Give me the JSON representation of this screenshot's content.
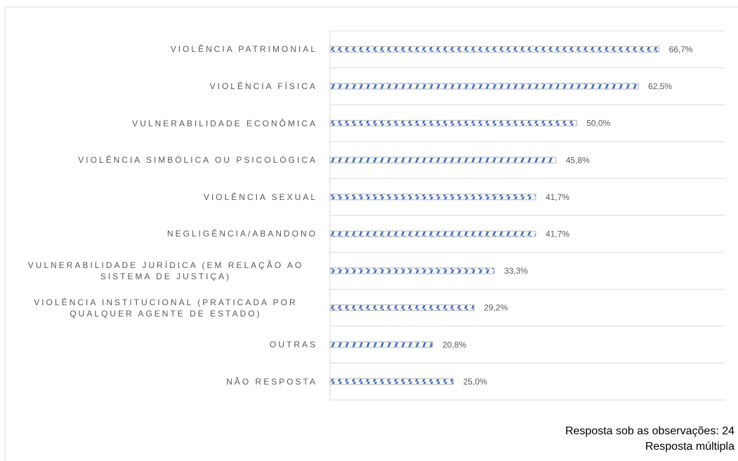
{
  "chart_data": {
    "type": "bar",
    "orientation": "horizontal",
    "categories": [
      "VIOLÊNCIA PATRIMONIAL",
      "VIOLÊNCIA FÍSICA",
      "VULNERABILIDADE ECONÔMICA",
      "VIOLÊNCIA SIMBÓLICA OU PSICOLÓGICA",
      "VIOLÊNCIA SEXUAL",
      "NEGLIGÊNCIA/ABANDONO",
      "VULNERABILIDADE JURÍDICA (EM RELAÇÃO AO SISTEMA DE JUSTIÇA)",
      "VIOLÊNCIA INSTITUCIONAL (PRATICADA POR QUALQUER AGENTE DE ESTADO)",
      "OUTRAS",
      "NÃO RESPOSTA"
    ],
    "values": [
      66.7,
      62.5,
      50.0,
      45.8,
      41.7,
      41.7,
      33.3,
      29.2,
      20.8,
      25.0
    ],
    "value_labels": [
      "66,7%",
      "62,5%",
      "50,0%",
      "45,8%",
      "41,7%",
      "41,7%",
      "33,3%",
      "29,2%",
      "20,8%",
      "25,0%"
    ],
    "color": "#4472c4",
    "xlim": [
      0,
      80
    ],
    "grid": true,
    "notes": [
      "Resposta sob as observações: 24",
      "Resposta múltipla"
    ]
  }
}
